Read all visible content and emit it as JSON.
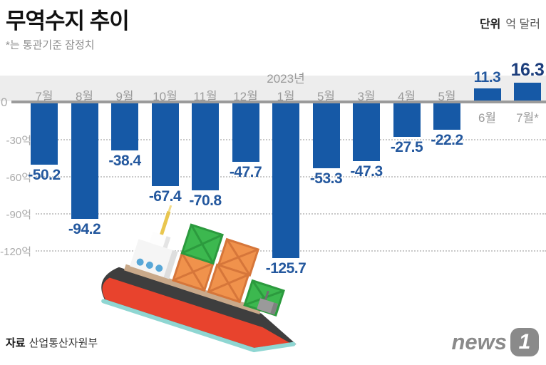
{
  "title": "무역수지 추이",
  "subtitle": "*는 통관기준 잠정치",
  "unit": {
    "label": "단위",
    "value": "억 달러"
  },
  "source": {
    "label": "자료",
    "value": "산업통산자원부"
  },
  "logo": {
    "text": "news",
    "badge": "1"
  },
  "colors": {
    "bar": "#1659a6",
    "value_label": "#24589e",
    "value_label_emphasis": "#1c3e7c",
    "axis": "#9b9b9b",
    "grid": "#c9c9c9",
    "strip": "#ededed",
    "tick_label": "#ababab",
    "month_label": "#9a9a9a"
  },
  "chart_data": {
    "type": "bar",
    "title": "무역수지 추이",
    "ylabel": "억 달러",
    "categories": [
      "7월",
      "8월",
      "9월",
      "10월",
      "11월",
      "12월",
      "1월",
      "5월",
      "3월",
      "4월",
      "5월",
      "6월",
      "7월*"
    ],
    "values": [
      -50.2,
      -94.2,
      -38.4,
      -67.4,
      -70.8,
      -47.7,
      -125.7,
      -53.3,
      -47.3,
      -27.5,
      -22.2,
      11.3,
      16.3
    ],
    "year_annotation": {
      "text": "2023년",
      "index": 6
    },
    "emphasis_index": 12,
    "ylim": [
      -135,
      25
    ],
    "yticks": [
      {
        "value": 0,
        "label": "0"
      },
      {
        "value": -30,
        "label": "-30억"
      },
      {
        "value": -60,
        "label": "-60억"
      },
      {
        "value": -90,
        "label": "-90억"
      },
      {
        "value": -120,
        "label": "-120억"
      }
    ],
    "grid": "horizontal-dotted",
    "legend": "none"
  }
}
